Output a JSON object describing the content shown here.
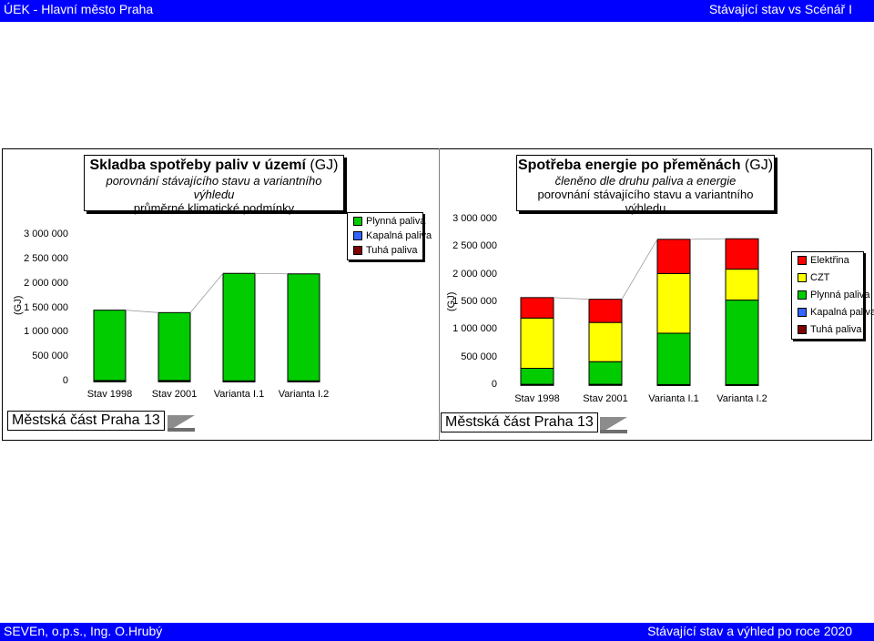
{
  "header": {
    "left": "ÚEK - Hlavní město Praha",
    "right": "Stávající stav vs Scénář I"
  },
  "footer": {
    "left": "SEVEn, o.p.s., Ing. O.Hrubý",
    "right": "Stávající stav a výhled po roce 2020"
  },
  "colors": {
    "header_bg": "#0000ff",
    "green": "#00cc00",
    "blue": "#3366ff",
    "darkred": "#800000",
    "yellow": "#ffff00",
    "red": "#ff0000"
  },
  "left_chart": {
    "title": "Skladba spotřeby paliv v území",
    "title_unit": "(GJ)",
    "subtitle1": "porovnání stávajícího stavu a variantního výhledu",
    "subtitle2": "průměrné klimatické podmínky",
    "district": "Městská část Praha 13",
    "ylabel": "(GJ)",
    "yticks": [
      "3 000 000",
      "2 500 000",
      "2 000 000",
      "1 500 000",
      "1 000 000",
      "500 000",
      "0"
    ],
    "legend": [
      "Plynná paliva",
      "Kapalná paliva",
      "Tuhá paliva"
    ]
  },
  "right_chart": {
    "title": "Spotřeba energie po přeměnách",
    "title_unit": "(GJ)",
    "subtitle1": "členěno dle druhu paliva a energie",
    "subtitle2": "porovnání stávajícího stavu a variantního výhledu",
    "district": "Městská část Praha 13",
    "ylabel": "(GJ)",
    "yticks": [
      "3 000 000",
      "2 500 000",
      "2 000 000",
      "1 500 000",
      "1 000 000",
      "500 000",
      "0"
    ],
    "legend": [
      "Elektřina",
      "CZT",
      "Plynná paliva",
      "Kapalná paliva",
      "Tuhá paliva"
    ]
  },
  "chart_data": [
    {
      "type": "bar",
      "stacked": true,
      "title": "Skladba spotřeby paliv v území (GJ)",
      "subtitle": "porovnání stávajícího stavu a variantního výhledu; průměrné klimatické podmínky",
      "ylabel": "(GJ)",
      "ylim": [
        0,
        3000000
      ],
      "categories": [
        "Stav 1998",
        "Stav 2001",
        "Varianta I.1",
        "Varianta I.2"
      ],
      "series": [
        {
          "name": "Tuhá paliva",
          "values": [
            5000,
            5000,
            3000,
            3000
          ]
        },
        {
          "name": "Kapalná paliva",
          "values": [
            15000,
            15000,
            10000,
            10000
          ]
        },
        {
          "name": "Plynná paliva",
          "values": [
            1440000,
            1390000,
            2200000,
            2190000
          ]
        }
      ],
      "legend": "top-right"
    },
    {
      "type": "bar",
      "stacked": true,
      "title": "Spotřeba energie po přeměnách (GJ)",
      "subtitle": "členěno dle druhu paliva a energie; porovnání stávajícího stavu a variantního výhledu",
      "ylabel": "(GJ)",
      "ylim": [
        0,
        3000000
      ],
      "categories": [
        "Stav 1998",
        "Stav 2001",
        "Varianta I.1",
        "Varianta I.2"
      ],
      "series": [
        {
          "name": "Tuhá paliva",
          "values": [
            5000,
            5000,
            3000,
            3000
          ]
        },
        {
          "name": "Kapalná paliva",
          "values": [
            10000,
            10000,
            7000,
            7000
          ]
        },
        {
          "name": "Plynná paliva",
          "values": [
            290000,
            410000,
            930000,
            1530000
          ]
        },
        {
          "name": "CZT",
          "values": [
            910000,
            710000,
            1080000,
            560000
          ]
        },
        {
          "name": "Elektřina",
          "values": [
            370000,
            420000,
            620000,
            550000
          ]
        }
      ],
      "legend": "right"
    }
  ]
}
